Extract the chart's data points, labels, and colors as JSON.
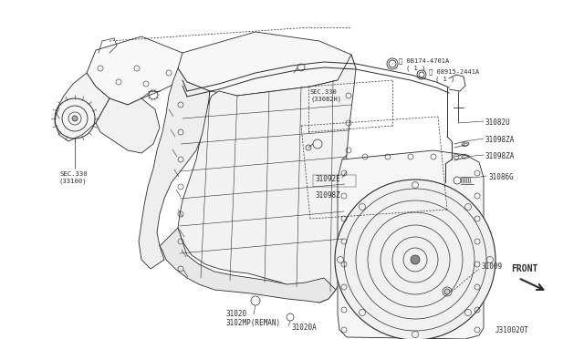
{
  "bg_color": "#ffffff",
  "line_color": "#2a2a2a",
  "fig_width": 6.4,
  "fig_height": 3.72,
  "dpi": 100,
  "labels": {
    "sec330_33100": "SEC.330\n(33100)",
    "sec330_33082h": "SEC.330\n(33082H)",
    "bolt1_line1": "Ⓑ 0B174-4701A",
    "bolt1_line2": "( 1 )",
    "bolt2_line1": "Ⓠ 08915-2441A",
    "bolt2_line2": "( 1 )",
    "part31082u": "31082U",
    "part31098za_1": "31098ZA",
    "part31098za_2": "31098ZA",
    "part31086g": "31086G",
    "part31092e": "31092E",
    "part31098z": "31098Z",
    "part31009": "31009",
    "part31020": "31020\n3102MP(REMAN)",
    "part31020a": "31020A",
    "front": "FRONT",
    "diagram_id": "J310020T"
  },
  "fs": 5.5,
  "fs2": 6.0,
  "lw": 0.6
}
